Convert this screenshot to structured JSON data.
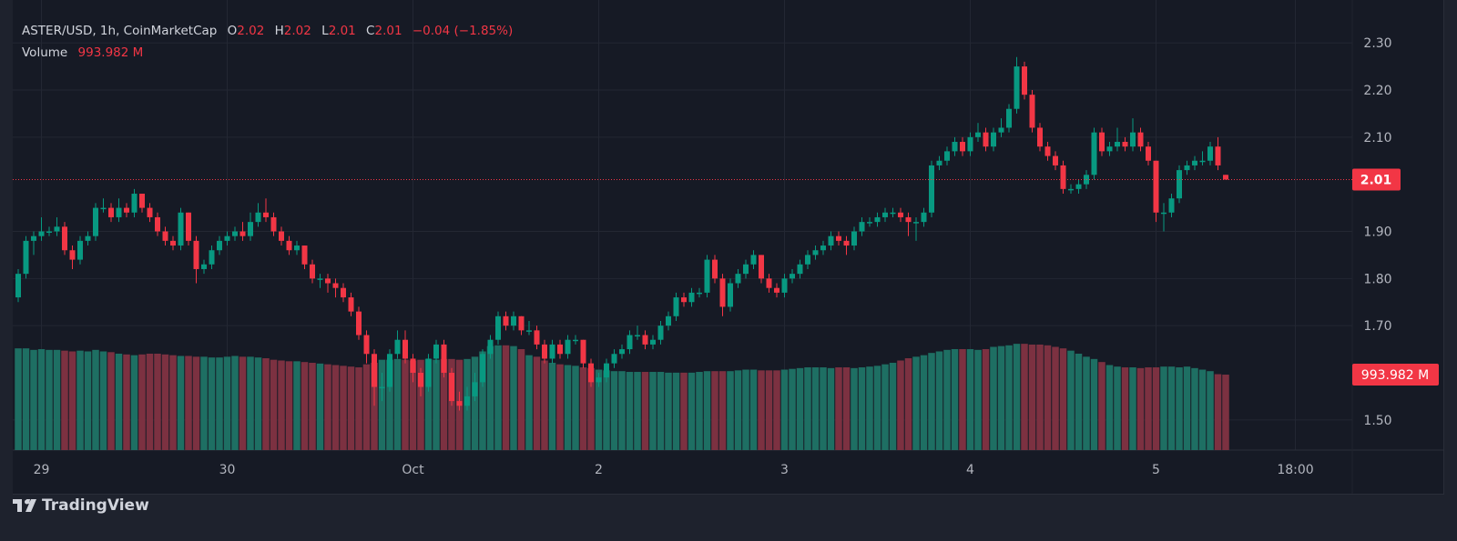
{
  "legend": {
    "symbol": "ASTER/USD, 1h, CoinMarketCap",
    "o_label": "O",
    "o_value": "2.02",
    "h_label": "H",
    "h_value": "2.02",
    "l_label": "L",
    "l_value": "2.01",
    "c_label": "C",
    "c_value": "2.01",
    "change": "−0.04 (−1.85%)",
    "volume_label": "Volume",
    "volume_value": "993.982 M"
  },
  "branding": {
    "logo_text": "TradingView",
    "logo_icon": "tradingview-logo-icon"
  },
  "colors": {
    "up": "#089981",
    "down": "#f23645",
    "volume_up": "#1e6f63",
    "volume_down": "#7c3141",
    "background": "#161a25",
    "grid": "#232733"
  },
  "chart_data": {
    "type": "candlestick",
    "interval": "1h",
    "y_axis": {
      "ticks": [
        "2.30",
        "2.20",
        "2.10",
        "1.90",
        "1.80",
        "1.70",
        "1.50"
      ],
      "tick_values": [
        2.3,
        2.2,
        2.1,
        1.9,
        1.8,
        1.7,
        1.5
      ],
      "range": [
        1.436,
        2.391
      ],
      "grid": true
    },
    "last_price_label": "2.01",
    "last_price": 2.01,
    "last_volume_label": "993.982 M",
    "x_axis": {
      "ticks": [
        {
          "label": "29",
          "index": 3
        },
        {
          "label": "30",
          "index": 27
        },
        {
          "label": "Oct",
          "index": 51
        },
        {
          "label": "2",
          "index": 75
        },
        {
          "label": "3",
          "index": 99
        },
        {
          "label": "4",
          "index": 123
        },
        {
          "label": "5",
          "index": 147
        },
        {
          "label": "18:00",
          "index": 165
        }
      ],
      "grid": true
    },
    "volume_unit": "M",
    "volume_range": [
      0,
      5930
    ],
    "candles_ohlc": [
      [
        1.76,
        1.82,
        1.75,
        1.81
      ],
      [
        1.81,
        1.89,
        1.8,
        1.88
      ],
      [
        1.88,
        1.9,
        1.85,
        1.89
      ],
      [
        1.89,
        1.93,
        1.88,
        1.9
      ],
      [
        1.9,
        1.91,
        1.89,
        1.9
      ],
      [
        1.9,
        1.93,
        1.89,
        1.91
      ],
      [
        1.91,
        1.92,
        1.85,
        1.86
      ],
      [
        1.86,
        1.87,
        1.82,
        1.84
      ],
      [
        1.84,
        1.89,
        1.83,
        1.88
      ],
      [
        1.88,
        1.9,
        1.87,
        1.89
      ],
      [
        1.89,
        1.96,
        1.88,
        1.95
      ],
      [
        1.95,
        1.97,
        1.94,
        1.95
      ],
      [
        1.95,
        1.96,
        1.92,
        1.93
      ],
      [
        1.93,
        1.97,
        1.92,
        1.95
      ],
      [
        1.95,
        1.96,
        1.93,
        1.94
      ],
      [
        1.94,
        1.99,
        1.93,
        1.98
      ],
      [
        1.98,
        1.98,
        1.94,
        1.95
      ],
      [
        1.95,
        1.96,
        1.92,
        1.93
      ],
      [
        1.93,
        1.94,
        1.89,
        1.9
      ],
      [
        1.9,
        1.91,
        1.87,
        1.88
      ],
      [
        1.88,
        1.89,
        1.86,
        1.87
      ],
      [
        1.87,
        1.95,
        1.86,
        1.94
      ],
      [
        1.94,
        1.94,
        1.87,
        1.88
      ],
      [
        1.88,
        1.89,
        1.79,
        1.82
      ],
      [
        1.82,
        1.84,
        1.81,
        1.83
      ],
      [
        1.83,
        1.87,
        1.82,
        1.86
      ],
      [
        1.86,
        1.89,
        1.85,
        1.88
      ],
      [
        1.88,
        1.9,
        1.87,
        1.89
      ],
      [
        1.89,
        1.91,
        1.88,
        1.9
      ],
      [
        1.9,
        1.92,
        1.88,
        1.89
      ],
      [
        1.89,
        1.94,
        1.88,
        1.92
      ],
      [
        1.92,
        1.96,
        1.91,
        1.94
      ],
      [
        1.94,
        1.97,
        1.92,
        1.93
      ],
      [
        1.93,
        1.94,
        1.89,
        1.9
      ],
      [
        1.9,
        1.91,
        1.87,
        1.88
      ],
      [
        1.88,
        1.89,
        1.85,
        1.86
      ],
      [
        1.86,
        1.88,
        1.85,
        1.87
      ],
      [
        1.87,
        1.87,
        1.82,
        1.83
      ],
      [
        1.83,
        1.84,
        1.79,
        1.8
      ],
      [
        1.8,
        1.81,
        1.78,
        1.8
      ],
      [
        1.8,
        1.81,
        1.77,
        1.79
      ],
      [
        1.79,
        1.8,
        1.76,
        1.78
      ],
      [
        1.78,
        1.79,
        1.75,
        1.76
      ],
      [
        1.76,
        1.77,
        1.72,
        1.73
      ],
      [
        1.73,
        1.74,
        1.67,
        1.68
      ],
      [
        1.68,
        1.69,
        1.62,
        1.64
      ],
      [
        1.64,
        1.65,
        1.53,
        1.57
      ],
      [
        1.57,
        1.6,
        1.54,
        1.57
      ],
      [
        1.57,
        1.65,
        1.56,
        1.64
      ],
      [
        1.64,
        1.69,
        1.63,
        1.67
      ],
      [
        1.67,
        1.69,
        1.62,
        1.63
      ],
      [
        1.63,
        1.64,
        1.58,
        1.6
      ],
      [
        1.6,
        1.61,
        1.55,
        1.57
      ],
      [
        1.57,
        1.64,
        1.56,
        1.63
      ],
      [
        1.63,
        1.67,
        1.62,
        1.66
      ],
      [
        1.66,
        1.67,
        1.59,
        1.6
      ],
      [
        1.6,
        1.61,
        1.53,
        1.54
      ],
      [
        1.54,
        1.56,
        1.52,
        1.53
      ],
      [
        1.53,
        1.57,
        1.52,
        1.55
      ],
      [
        1.55,
        1.6,
        1.54,
        1.58
      ],
      [
        1.58,
        1.65,
        1.57,
        1.64
      ],
      [
        1.64,
        1.68,
        1.63,
        1.67
      ],
      [
        1.67,
        1.73,
        1.66,
        1.72
      ],
      [
        1.72,
        1.73,
        1.69,
        1.7
      ],
      [
        1.7,
        1.73,
        1.69,
        1.72
      ],
      [
        1.72,
        1.72,
        1.68,
        1.69
      ],
      [
        1.69,
        1.71,
        1.68,
        1.69
      ],
      [
        1.69,
        1.7,
        1.65,
        1.66
      ],
      [
        1.66,
        1.67,
        1.62,
        1.63
      ],
      [
        1.63,
        1.67,
        1.62,
        1.66
      ],
      [
        1.66,
        1.67,
        1.63,
        1.64
      ],
      [
        1.64,
        1.68,
        1.63,
        1.67
      ],
      [
        1.67,
        1.68,
        1.66,
        1.67
      ],
      [
        1.67,
        1.67,
        1.61,
        1.62
      ],
      [
        1.62,
        1.63,
        1.57,
        1.58
      ],
      [
        1.58,
        1.6,
        1.57,
        1.59
      ],
      [
        1.59,
        1.63,
        1.58,
        1.62
      ],
      [
        1.62,
        1.65,
        1.61,
        1.64
      ],
      [
        1.64,
        1.66,
        1.63,
        1.65
      ],
      [
        1.65,
        1.69,
        1.64,
        1.68
      ],
      [
        1.68,
        1.7,
        1.67,
        1.68
      ],
      [
        1.68,
        1.69,
        1.65,
        1.66
      ],
      [
        1.66,
        1.68,
        1.65,
        1.67
      ],
      [
        1.67,
        1.71,
        1.66,
        1.7
      ],
      [
        1.7,
        1.73,
        1.69,
        1.72
      ],
      [
        1.72,
        1.77,
        1.71,
        1.76
      ],
      [
        1.76,
        1.77,
        1.74,
        1.75
      ],
      [
        1.75,
        1.78,
        1.74,
        1.77
      ],
      [
        1.77,
        1.78,
        1.76,
        1.77
      ],
      [
        1.77,
        1.85,
        1.76,
        1.84
      ],
      [
        1.84,
        1.85,
        1.79,
        1.8
      ],
      [
        1.8,
        1.81,
        1.72,
        1.74
      ],
      [
        1.74,
        1.8,
        1.73,
        1.79
      ],
      [
        1.79,
        1.82,
        1.78,
        1.81
      ],
      [
        1.81,
        1.84,
        1.8,
        1.83
      ],
      [
        1.83,
        1.86,
        1.82,
        1.85
      ],
      [
        1.85,
        1.85,
        1.79,
        1.8
      ],
      [
        1.8,
        1.81,
        1.77,
        1.78
      ],
      [
        1.78,
        1.79,
        1.76,
        1.77
      ],
      [
        1.77,
        1.81,
        1.76,
        1.8
      ],
      [
        1.8,
        1.82,
        1.79,
        1.81
      ],
      [
        1.81,
        1.84,
        1.8,
        1.83
      ],
      [
        1.83,
        1.86,
        1.82,
        1.85
      ],
      [
        1.85,
        1.87,
        1.84,
        1.86
      ],
      [
        1.86,
        1.88,
        1.85,
        1.87
      ],
      [
        1.87,
        1.9,
        1.86,
        1.89
      ],
      [
        1.89,
        1.9,
        1.87,
        1.88
      ],
      [
        1.88,
        1.89,
        1.85,
        1.87
      ],
      [
        1.87,
        1.91,
        1.86,
        1.9
      ],
      [
        1.9,
        1.93,
        1.89,
        1.92
      ],
      [
        1.92,
        1.93,
        1.91,
        1.92
      ],
      [
        1.92,
        1.94,
        1.91,
        1.93
      ],
      [
        1.93,
        1.95,
        1.92,
        1.94
      ],
      [
        1.94,
        1.95,
        1.93,
        1.94
      ],
      [
        1.94,
        1.95,
        1.92,
        1.93
      ],
      [
        1.93,
        1.94,
        1.89,
        1.92
      ],
      [
        1.92,
        1.93,
        1.88,
        1.92
      ],
      [
        1.92,
        1.95,
        1.91,
        1.94
      ],
      [
        1.94,
        2.05,
        1.93,
        2.04
      ],
      [
        2.04,
        2.06,
        2.03,
        2.05
      ],
      [
        2.05,
        2.08,
        2.04,
        2.07
      ],
      [
        2.07,
        2.1,
        2.06,
        2.09
      ],
      [
        2.09,
        2.1,
        2.06,
        2.07
      ],
      [
        2.07,
        2.11,
        2.06,
        2.1
      ],
      [
        2.1,
        2.13,
        2.09,
        2.11
      ],
      [
        2.11,
        2.12,
        2.07,
        2.08
      ],
      [
        2.08,
        2.12,
        2.07,
        2.11
      ],
      [
        2.11,
        2.14,
        2.1,
        2.12
      ],
      [
        2.12,
        2.17,
        2.11,
        2.16
      ],
      [
        2.16,
        2.27,
        2.15,
        2.25
      ],
      [
        2.25,
        2.26,
        2.18,
        2.19
      ],
      [
        2.19,
        2.2,
        2.11,
        2.12
      ],
      [
        2.12,
        2.13,
        2.07,
        2.08
      ],
      [
        2.08,
        2.09,
        2.05,
        2.06
      ],
      [
        2.06,
        2.07,
        2.03,
        2.04
      ],
      [
        2.04,
        2.05,
        1.98,
        1.99
      ],
      [
        1.99,
        2.0,
        1.98,
        1.99
      ],
      [
        1.99,
        2.01,
        1.98,
        2.0
      ],
      [
        2.0,
        2.03,
        1.99,
        2.02
      ],
      [
        2.02,
        2.12,
        2.01,
        2.11
      ],
      [
        2.11,
        2.12,
        2.06,
        2.07
      ],
      [
        2.07,
        2.09,
        2.06,
        2.08
      ],
      [
        2.08,
        2.12,
        2.07,
        2.09
      ],
      [
        2.09,
        2.1,
        2.07,
        2.08
      ],
      [
        2.08,
        2.14,
        2.07,
        2.11
      ],
      [
        2.11,
        2.12,
        2.07,
        2.08
      ],
      [
        2.08,
        2.09,
        2.04,
        2.05
      ],
      [
        2.05,
        2.05,
        1.92,
        1.94
      ],
      [
        1.94,
        1.96,
        1.9,
        1.94
      ],
      [
        1.94,
        1.98,
        1.93,
        1.97
      ],
      [
        1.97,
        2.04,
        1.96,
        2.03
      ],
      [
        2.03,
        2.05,
        2.02,
        2.04
      ],
      [
        2.04,
        2.06,
        2.03,
        2.05
      ],
      [
        2.05,
        2.07,
        2.04,
        2.05
      ],
      [
        2.05,
        2.09,
        2.04,
        2.08
      ],
      [
        2.08,
        2.1,
        2.03,
        2.04
      ],
      [
        2.02,
        2.02,
        2.01,
        2.01
      ]
    ],
    "volume": [
      1340,
      1340,
      1320,
      1330,
      1320,
      1320,
      1310,
      1300,
      1310,
      1300,
      1320,
      1300,
      1290,
      1270,
      1260,
      1250,
      1260,
      1270,
      1270,
      1260,
      1250,
      1240,
      1240,
      1230,
      1230,
      1220,
      1220,
      1230,
      1240,
      1230,
      1230,
      1220,
      1210,
      1190,
      1180,
      1170,
      1170,
      1160,
      1150,
      1140,
      1130,
      1120,
      1110,
      1100,
      1090,
      1130,
      1150,
      1190,
      1190,
      1200,
      1190,
      1180,
      1190,
      1200,
      1190,
      1200,
      1200,
      1190,
      1200,
      1230,
      1300,
      1370,
      1380,
      1380,
      1370,
      1330,
      1250,
      1230,
      1180,
      1150,
      1130,
      1120,
      1110,
      1090,
      1080,
      1060,
      1050,
      1040,
      1040,
      1030,
      1030,
      1030,
      1030,
      1030,
      1020,
      1020,
      1020,
      1020,
      1030,
      1040,
      1040,
      1040,
      1040,
      1050,
      1060,
      1060,
      1050,
      1050,
      1050,
      1060,
      1070,
      1080,
      1090,
      1090,
      1090,
      1080,
      1090,
      1090,
      1080,
      1090,
      1100,
      1110,
      1130,
      1150,
      1180,
      1210,
      1230,
      1250,
      1280,
      1300,
      1320,
      1330,
      1330,
      1330,
      1320,
      1330,
      1360,
      1370,
      1380,
      1400,
      1400,
      1390,
      1390,
      1380,
      1360,
      1340,
      1310,
      1270,
      1230,
      1200,
      1160,
      1120,
      1100,
      1090,
      1090,
      1080,
      1090,
      1090,
      1100,
      1100,
      1090,
      1100,
      1080,
      1060,
      1040,
      1000,
      994
    ]
  }
}
